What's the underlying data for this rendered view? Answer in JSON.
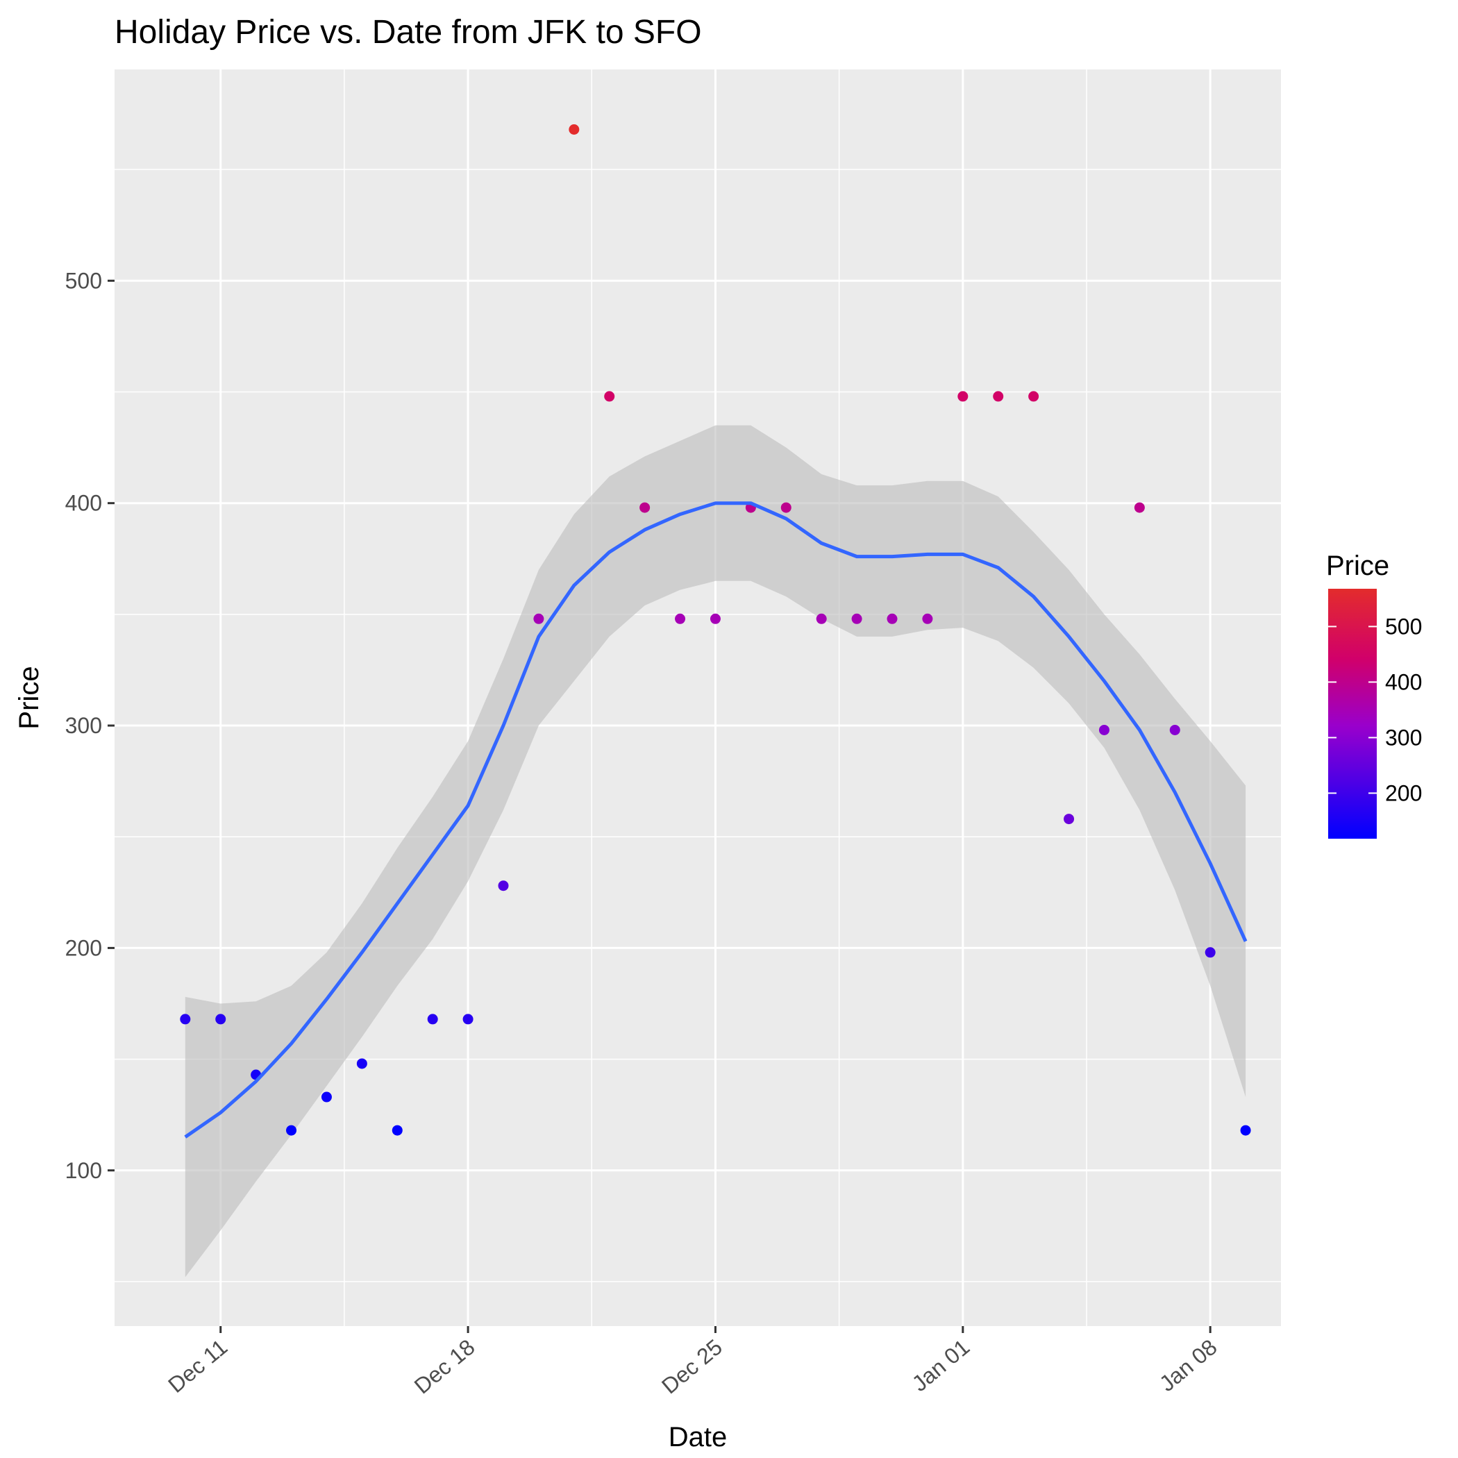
{
  "chart_data": {
    "type": "scatter",
    "title": "Holiday Price vs. Date from JFK to SFO",
    "xlabel": "Date",
    "ylabel": "Price",
    "x_ticks": [
      "Dec 11",
      "Dec 18",
      "Dec 25",
      "Jan 01",
      "Jan 08"
    ],
    "x_tick_dates": [
      "2016-12-11",
      "2016-12-18",
      "2016-12-25",
      "2017-01-01",
      "2017-01-08"
    ],
    "xlim": [
      "2016-12-08",
      "2017-01-10"
    ],
    "y_ticks": [
      100,
      200,
      300,
      400,
      500
    ],
    "ylim": [
      30,
      595
    ],
    "grid": true,
    "legend": {
      "title": "Price",
      "position": "right",
      "labels": [
        200,
        300,
        400,
        500
      ],
      "range": [
        118,
        568
      ],
      "colors": [
        "#0000ff",
        "#e32c2c"
      ]
    },
    "points": [
      {
        "x": "2016-12-10",
        "y": 168
      },
      {
        "x": "2016-12-11",
        "y": 168
      },
      {
        "x": "2016-12-12",
        "y": 143
      },
      {
        "x": "2016-12-13",
        "y": 118
      },
      {
        "x": "2016-12-14",
        "y": 133
      },
      {
        "x": "2016-12-15",
        "y": 148
      },
      {
        "x": "2016-12-16",
        "y": 118
      },
      {
        "x": "2016-12-17",
        "y": 168
      },
      {
        "x": "2016-12-18",
        "y": 168
      },
      {
        "x": "2016-12-19",
        "y": 228
      },
      {
        "x": "2016-12-20",
        "y": 348
      },
      {
        "x": "2016-12-21",
        "y": 568
      },
      {
        "x": "2016-12-22",
        "y": 448
      },
      {
        "x": "2016-12-23",
        "y": 398
      },
      {
        "x": "2016-12-24",
        "y": 348
      },
      {
        "x": "2016-12-25",
        "y": 348
      },
      {
        "x": "2016-12-26",
        "y": 398
      },
      {
        "x": "2016-12-27",
        "y": 398
      },
      {
        "x": "2016-12-28",
        "y": 348
      },
      {
        "x": "2016-12-29",
        "y": 348
      },
      {
        "x": "2016-12-30",
        "y": 348
      },
      {
        "x": "2016-12-31",
        "y": 348
      },
      {
        "x": "2017-01-01",
        "y": 448
      },
      {
        "x": "2017-01-02",
        "y": 448
      },
      {
        "x": "2017-01-03",
        "y": 448
      },
      {
        "x": "2017-01-04",
        "y": 258
      },
      {
        "x": "2017-01-05",
        "y": 298
      },
      {
        "x": "2017-01-06",
        "y": 398
      },
      {
        "x": "2017-01-07",
        "y": 298
      },
      {
        "x": "2017-01-08",
        "y": 198
      },
      {
        "x": "2017-01-09",
        "y": 118
      }
    ],
    "smooth": {
      "color": "#3366ff",
      "band_color": "#bdbdbd",
      "x": [
        "2016-12-10",
        "2016-12-11",
        "2016-12-12",
        "2016-12-13",
        "2016-12-14",
        "2016-12-15",
        "2016-12-16",
        "2016-12-17",
        "2016-12-18",
        "2016-12-19",
        "2016-12-20",
        "2016-12-21",
        "2016-12-22",
        "2016-12-23",
        "2016-12-24",
        "2016-12-25",
        "2016-12-26",
        "2016-12-27",
        "2016-12-28",
        "2016-12-29",
        "2016-12-30",
        "2016-12-31",
        "2017-01-01",
        "2017-01-02",
        "2017-01-03",
        "2017-01-04",
        "2017-01-05",
        "2017-01-06",
        "2017-01-07",
        "2017-01-08",
        "2017-01-09"
      ],
      "fit": [
        115,
        126,
        140,
        157,
        177,
        198,
        220,
        242,
        264,
        300,
        340,
        363,
        378,
        388,
        395,
        400,
        400,
        393,
        382,
        376,
        376,
        377,
        377,
        371,
        358,
        340,
        320,
        298,
        270,
        238,
        203
      ],
      "lower": [
        52,
        73,
        95,
        116,
        138,
        160,
        183,
        204,
        230,
        262,
        300,
        320,
        340,
        354,
        361,
        365,
        365,
        358,
        348,
        340,
        340,
        343,
        344,
        338,
        326,
        310,
        290,
        262,
        226,
        183,
        133
      ],
      "upper": [
        178,
        175,
        176,
        183,
        198,
        220,
        245,
        268,
        293,
        330,
        370,
        395,
        412,
        421,
        428,
        435,
        435,
        425,
        413,
        408,
        408,
        410,
        410,
        403,
        387,
        370,
        350,
        332,
        312,
        293,
        273
      ]
    }
  }
}
